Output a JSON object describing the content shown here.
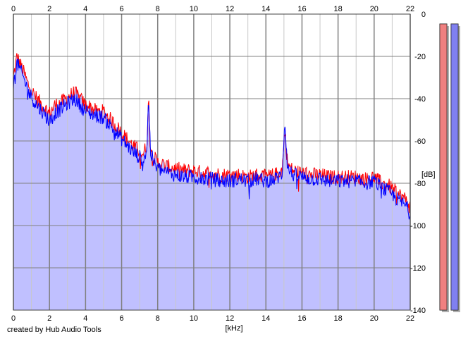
{
  "credit": "created by Hub Audio Tools",
  "colors": {
    "left_channel": "#ff0000",
    "right_channel": "#0000ff",
    "fill": "#c0c0ff",
    "grid_major": "#808080",
    "grid_minor": "#c8c8c8",
    "meter_left_fill": "#f08080",
    "meter_right_fill": "#8080f0"
  },
  "chart_data": {
    "type": "area",
    "xlabel": "[kHz]",
    "ylabel": "[dB]",
    "xlim": [
      0,
      22
    ],
    "ylim": [
      -140,
      0
    ],
    "x_ticks": [
      "0",
      "2",
      "4",
      "6",
      "8",
      "10",
      "12",
      "14",
      "16",
      "18",
      "20",
      "22"
    ],
    "y_ticks": [
      "0",
      "-20",
      "-40",
      "-60",
      "-80",
      "-100",
      "-120",
      "-140"
    ],
    "grid": true,
    "series": [
      {
        "channel": "left",
        "color": "#ff0000",
        "x": [
          0,
          0.2,
          0.4,
          0.6,
          0.8,
          1,
          1.2,
          1.5,
          1.8,
          2,
          2.3,
          2.6,
          2.9,
          3.2,
          3.4,
          3.6,
          3.8,
          4,
          4.3,
          4.6,
          5,
          5.3,
          5.6,
          6,
          6.3,
          6.6,
          6.9,
          7.2,
          7.4,
          7.5,
          7.6,
          7.8,
          8,
          8.5,
          9,
          9.5,
          10,
          10.5,
          11,
          11.5,
          12,
          12.5,
          13,
          13.5,
          14,
          14.5,
          14.9,
          15.05,
          15.2,
          15.5,
          16,
          16.5,
          17,
          17.5,
          18,
          18.5,
          19,
          19.5,
          20,
          20.4,
          20.8,
          21.2,
          21.5,
          21.8,
          22
        ],
        "y": [
          -30,
          -20,
          -24,
          -28,
          -33,
          -36,
          -39,
          -42,
          -45,
          -47,
          -43,
          -42,
          -40,
          -38,
          -37,
          -39,
          -41,
          -43,
          -44,
          -46,
          -46,
          -49,
          -52,
          -56,
          -59,
          -62,
          -64,
          -66,
          -62,
          -40,
          -63,
          -68,
          -70,
          -72,
          -73,
          -74,
          -74,
          -75,
          -75,
          -76,
          -76,
          -76,
          -77,
          -76,
          -77,
          -76,
          -74,
          -55,
          -71,
          -74,
          -75,
          -76,
          -76,
          -77,
          -77,
          -77,
          -77,
          -78,
          -77,
          -80,
          -81,
          -84,
          -86,
          -88,
          -92
        ]
      },
      {
        "channel": "right",
        "color": "#0000ff",
        "x": [
          0,
          0.2,
          0.4,
          0.6,
          0.8,
          1,
          1.2,
          1.5,
          1.8,
          2,
          2.3,
          2.6,
          2.9,
          3.2,
          3.4,
          3.6,
          3.8,
          4,
          4.3,
          4.6,
          5,
          5.3,
          5.6,
          6,
          6.3,
          6.6,
          6.9,
          7.2,
          7.4,
          7.5,
          7.6,
          7.8,
          8,
          8.5,
          9,
          9.5,
          10,
          10.5,
          11,
          11.5,
          12,
          12.5,
          13,
          13.5,
          14,
          14.5,
          14.9,
          15.05,
          15.2,
          15.5,
          16,
          16.5,
          17,
          17.5,
          18,
          18.5,
          19,
          19.5,
          20,
          20.4,
          20.8,
          21.2,
          21.5,
          21.8,
          22
        ],
        "y": [
          -34,
          -23,
          -27,
          -31,
          -36,
          -39,
          -42,
          -45,
          -48,
          -51,
          -47,
          -45,
          -43,
          -41,
          -40,
          -42,
          -44,
          -46,
          -47,
          -48,
          -49,
          -52,
          -55,
          -59,
          -62,
          -65,
          -67,
          -69,
          -64,
          -39,
          -65,
          -71,
          -73,
          -75,
          -76,
          -77,
          -77,
          -78,
          -78,
          -79,
          -79,
          -78,
          -79,
          -78,
          -79,
          -78,
          -76,
          -50,
          -73,
          -76,
          -77,
          -78,
          -78,
          -79,
          -79,
          -79,
          -79,
          -80,
          -79,
          -82,
          -84,
          -87,
          -89,
          -91,
          -95
        ]
      }
    ],
    "level_meters": [
      {
        "channel": "left",
        "level_db": -140,
        "color": "#f08080"
      },
      {
        "channel": "right",
        "level_db": -140,
        "color": "#8080f0"
      }
    ]
  }
}
